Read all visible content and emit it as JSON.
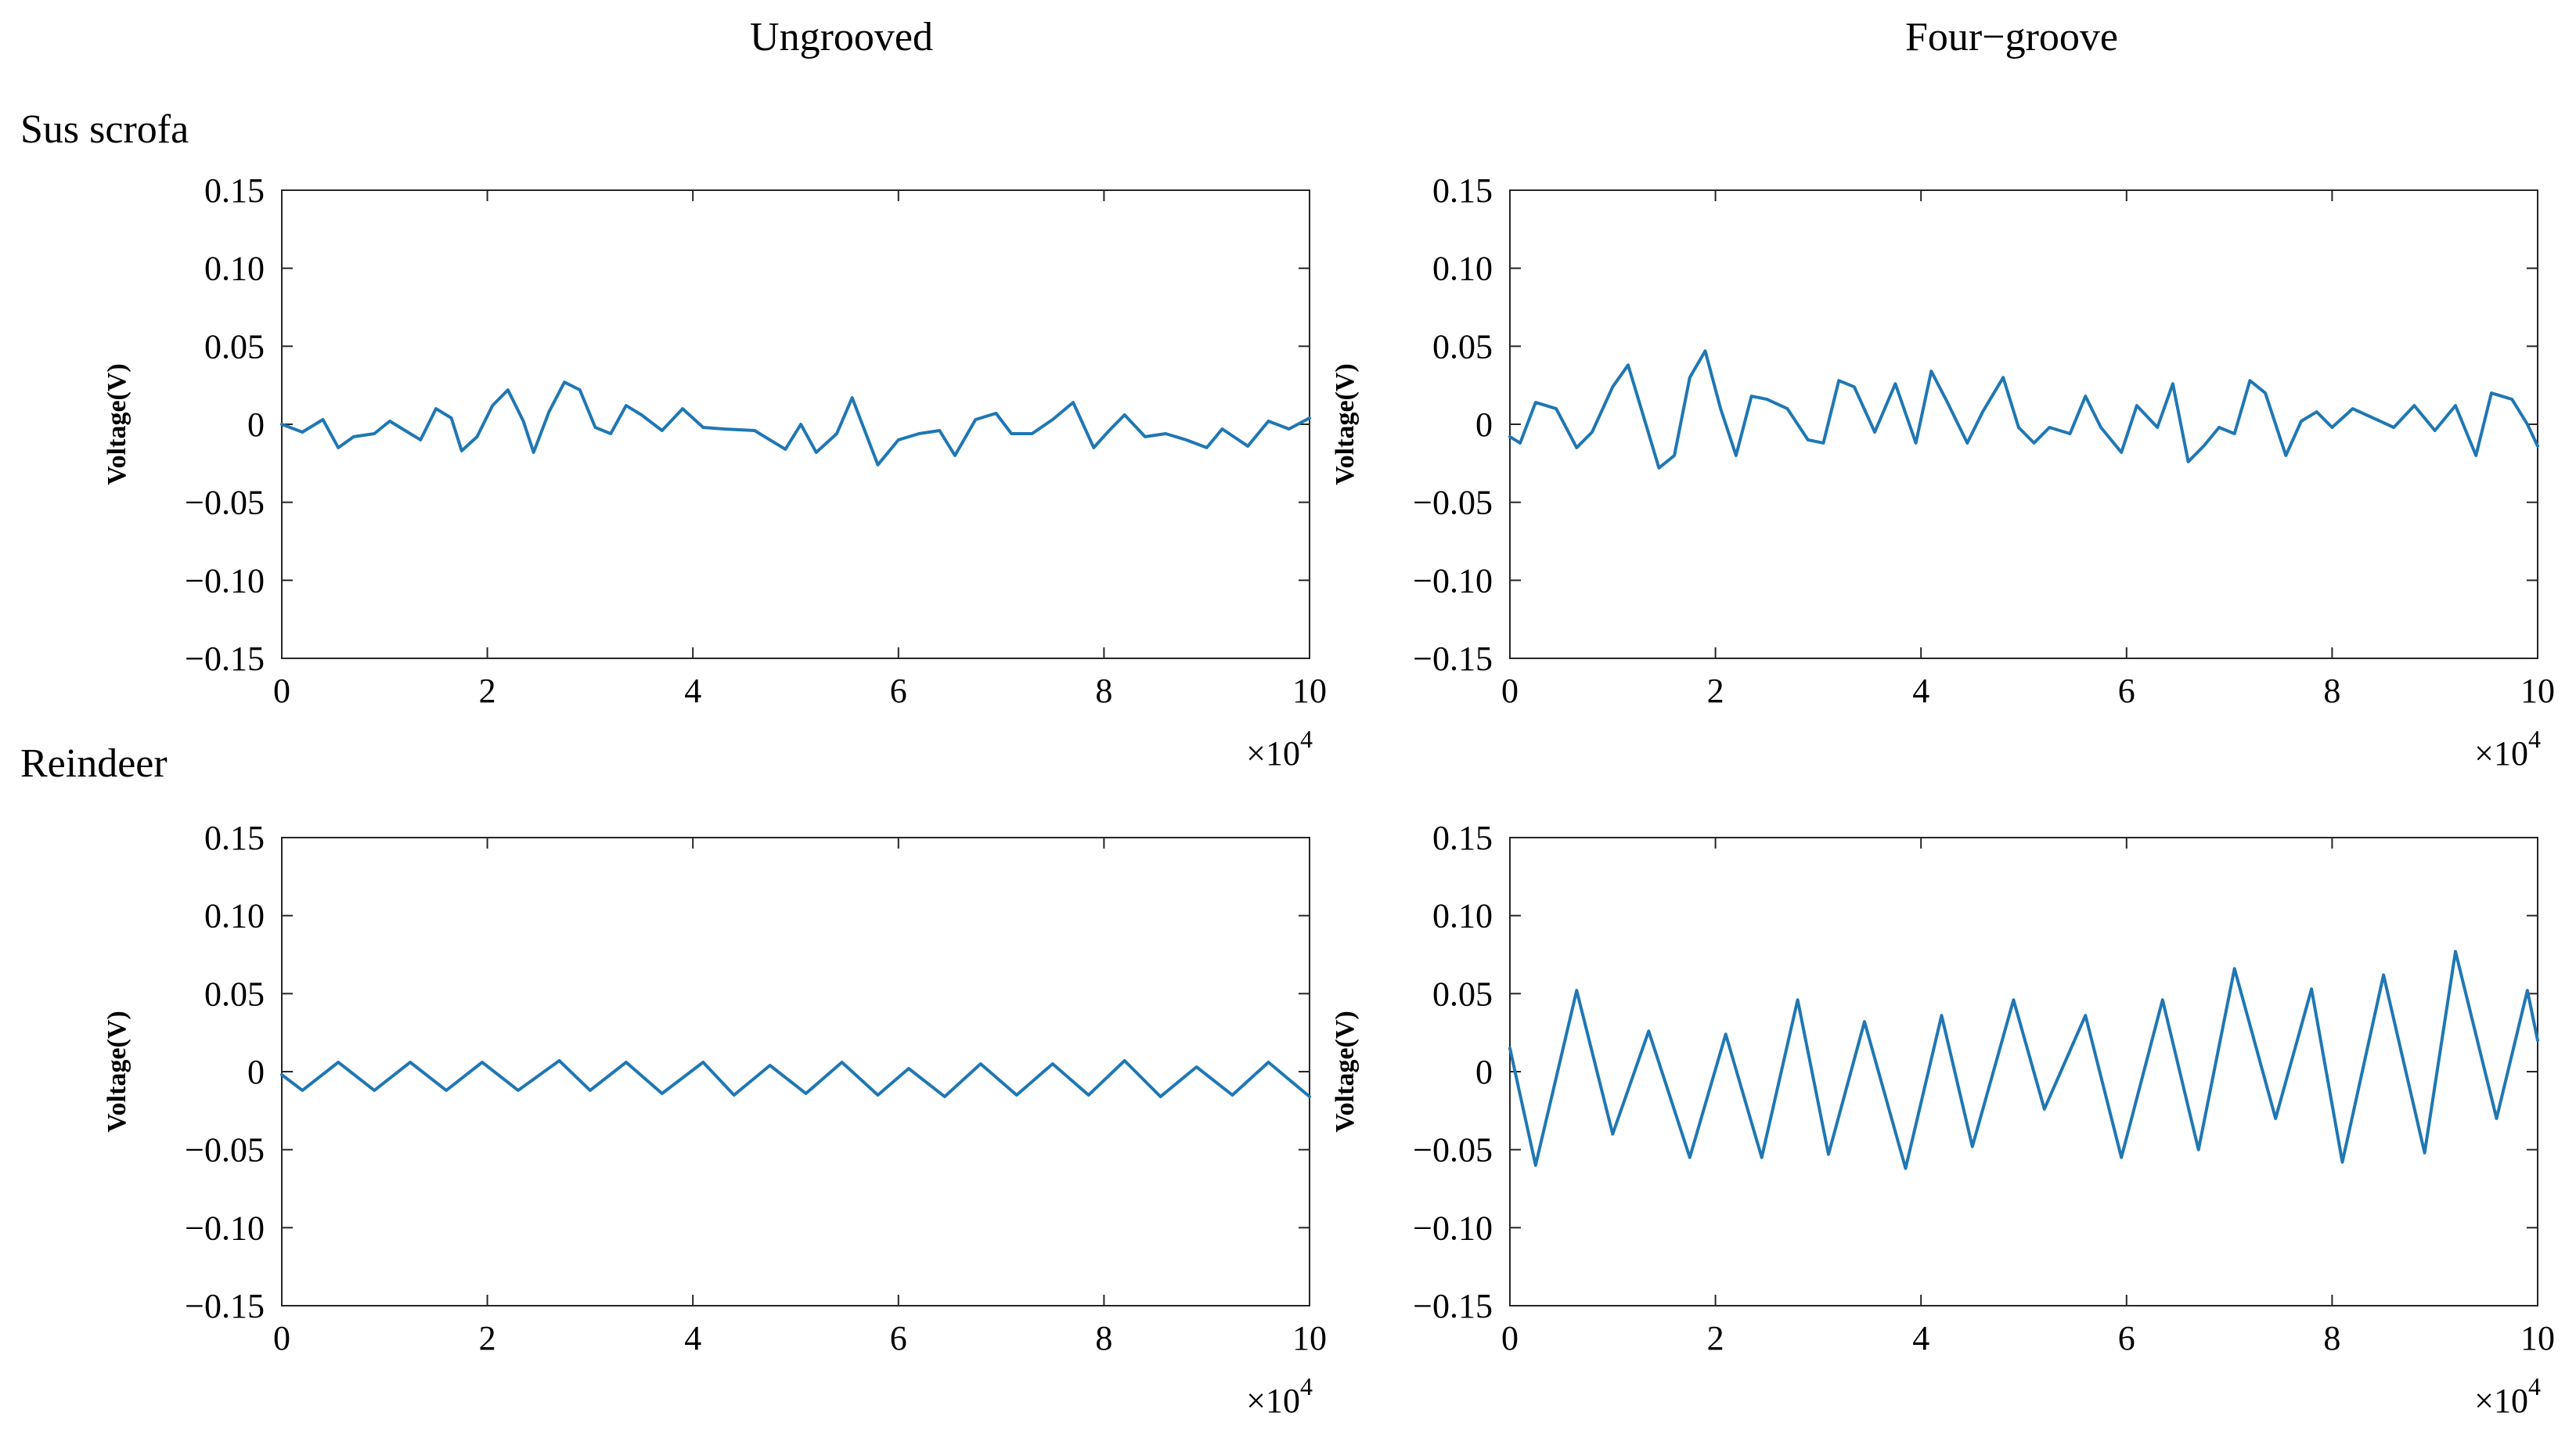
{
  "columns": [
    "Ungrooved",
    "Four−groove"
  ],
  "rows": [
    "Sus scrofa",
    "Reindeer"
  ],
  "colors": {
    "series": "#1f77b4",
    "axis": "#262626"
  },
  "chart_data": [
    {
      "type": "line",
      "panel": "Sus scrofa / Ungrooved",
      "ylabel": "Voltage(V)",
      "xlim": [
        0,
        10
      ],
      "ylim": [
        -0.15,
        0.15
      ],
      "x_multiplier": "×10",
      "x_multiplier_exp": "4",
      "xticks": [
        "0",
        "2",
        "4",
        "6",
        "8",
        "10"
      ],
      "yticks": [
        "0.15",
        "0.10",
        "0.05",
        "0",
        "−0.05",
        "−0.10",
        "−0.15"
      ],
      "series": [
        {
          "x": [
            0,
            0.2,
            0.4,
            0.55,
            0.7,
            0.9,
            1.05,
            1.2,
            1.35,
            1.5,
            1.65,
            1.75,
            1.9,
            2.05,
            2.2,
            2.35,
            2.45,
            2.6,
            2.75,
            2.9,
            3.05,
            3.2,
            3.35,
            3.5,
            3.7,
            3.9,
            4.1,
            4.3,
            4.6,
            4.9,
            5.05,
            5.2,
            5.4,
            5.55,
            5.8,
            6.0,
            6.2,
            6.4,
            6.55,
            6.75,
            6.95,
            7.1,
            7.3,
            7.5,
            7.7,
            7.9,
            8.05,
            8.2,
            8.4,
            8.6,
            8.8,
            9.0,
            9.15,
            9.4,
            9.6,
            9.8,
            10
          ],
          "y": [
            0,
            -0.005,
            0.003,
            -0.015,
            -0.008,
            -0.006,
            0.002,
            -0.004,
            -0.01,
            0.01,
            0.004,
            -0.017,
            -0.008,
            0.012,
            0.022,
            0.002,
            -0.018,
            0.008,
            0.027,
            0.022,
            -0.002,
            -0.006,
            0.012,
            0.006,
            -0.004,
            0.01,
            -0.002,
            -0.003,
            -0.004,
            -0.016,
            0.0,
            -0.018,
            -0.006,
            0.017,
            -0.026,
            -0.01,
            -0.006,
            -0.004,
            -0.02,
            0.003,
            0.007,
            -0.006,
            -0.006,
            0.003,
            0.014,
            -0.015,
            -0.004,
            0.006,
            -0.008,
            -0.006,
            -0.01,
            -0.015,
            -0.003,
            -0.014,
            0.002,
            -0.003,
            0.004
          ]
        }
      ]
    },
    {
      "type": "line",
      "panel": "Sus scrofa / Four-groove",
      "ylabel": "Voltage(V)",
      "xlim": [
        0,
        10
      ],
      "ylim": [
        -0.15,
        0.15
      ],
      "x_multiplier": "×10",
      "x_multiplier_exp": "4",
      "xticks": [
        "0",
        "2",
        "4",
        "6",
        "8",
        "10"
      ],
      "yticks": [
        "0.15",
        "0.10",
        "0.05",
        "0",
        "−0.05",
        "−0.10",
        "−0.15"
      ],
      "series": [
        {
          "x": [
            0,
            0.1,
            0.25,
            0.45,
            0.65,
            0.8,
            1.0,
            1.15,
            1.3,
            1.45,
            1.6,
            1.75,
            1.9,
            2.05,
            2.2,
            2.35,
            2.5,
            2.7,
            2.9,
            3.05,
            3.2,
            3.35,
            3.55,
            3.75,
            3.95,
            4.1,
            4.25,
            4.45,
            4.6,
            4.8,
            4.95,
            5.1,
            5.25,
            5.45,
            5.6,
            5.75,
            5.95,
            6.1,
            6.3,
            6.45,
            6.6,
            6.75,
            6.9,
            7.05,
            7.2,
            7.35,
            7.55,
            7.7,
            7.85,
            8.0,
            8.2,
            8.4,
            8.6,
            8.8,
            9.0,
            9.2,
            9.4,
            9.55,
            9.75,
            9.9,
            10
          ],
          "y": [
            -0.008,
            -0.012,
            0.014,
            0.01,
            -0.015,
            -0.005,
            0.024,
            0.038,
            0.005,
            -0.028,
            -0.02,
            0.03,
            0.047,
            0.01,
            -0.02,
            0.018,
            0.016,
            0.01,
            -0.01,
            -0.012,
            0.028,
            0.024,
            -0.005,
            0.026,
            -0.012,
            0.034,
            0.015,
            -0.012,
            0.008,
            0.03,
            -0.002,
            -0.012,
            -0.002,
            -0.006,
            0.018,
            -0.002,
            -0.018,
            0.012,
            -0.002,
            0.026,
            -0.024,
            -0.014,
            -0.002,
            -0.006,
            0.028,
            0.02,
            -0.02,
            0.002,
            0.008,
            -0.002,
            0.01,
            0.004,
            -0.002,
            0.012,
            -0.004,
            0.012,
            -0.02,
            0.02,
            0.016,
            0.0,
            -0.014
          ]
        }
      ]
    },
    {
      "type": "line",
      "panel": "Reindeer / Ungrooved",
      "ylabel": "Voltage(V)",
      "xlim": [
        0,
        10
      ],
      "ylim": [
        -0.15,
        0.15
      ],
      "x_multiplier": "×10",
      "x_multiplier_exp": "4",
      "xticks": [
        "0",
        "2",
        "4",
        "6",
        "8",
        "10"
      ],
      "yticks": [
        "0.15",
        "0.10",
        "0.05",
        "0",
        "−0.05",
        "−0.10",
        "−0.15"
      ],
      "series": [
        {
          "x": [
            0,
            0.2,
            0.55,
            0.9,
            1.25,
            1.6,
            1.95,
            2.3,
            2.7,
            3.0,
            3.35,
            3.7,
            4.1,
            4.4,
            4.75,
            5.1,
            5.45,
            5.8,
            6.1,
            6.45,
            6.8,
            7.15,
            7.5,
            7.85,
            8.2,
            8.55,
            8.9,
            9.25,
            9.6,
            10
          ],
          "y": [
            -0.002,
            -0.012,
            0.006,
            -0.012,
            0.006,
            -0.012,
            0.006,
            -0.012,
            0.007,
            -0.012,
            0.006,
            -0.014,
            0.006,
            -0.015,
            0.004,
            -0.014,
            0.006,
            -0.015,
            0.002,
            -0.016,
            0.005,
            -0.015,
            0.005,
            -0.015,
            0.007,
            -0.016,
            0.003,
            -0.015,
            0.006,
            -0.016
          ]
        }
      ]
    },
    {
      "type": "line",
      "panel": "Reindeer / Four-groove",
      "ylabel": "Voltage(V)",
      "xlim": [
        0,
        10
      ],
      "ylim": [
        -0.15,
        0.15
      ],
      "x_multiplier": "×10",
      "x_multiplier_exp": "4",
      "xticks": [
        "0",
        "2",
        "4",
        "6",
        "8",
        "10"
      ],
      "yticks": [
        "0.15",
        "0.10",
        "0.05",
        "0",
        "−0.05",
        "−0.10",
        "−0.15"
      ],
      "series": [
        {
          "x": [
            0,
            0.25,
            0.65,
            1.0,
            1.35,
            1.75,
            2.1,
            2.45,
            2.8,
            3.1,
            3.45,
            3.85,
            4.2,
            4.5,
            4.9,
            5.2,
            5.6,
            5.95,
            6.35,
            6.7,
            7.05,
            7.45,
            7.8,
            8.1,
            8.5,
            8.9,
            9.2,
            9.6,
            9.9,
            10
          ],
          "y": [
            0.015,
            -0.06,
            0.052,
            -0.04,
            0.026,
            -0.055,
            0.024,
            -0.055,
            0.046,
            -0.053,
            0.032,
            -0.062,
            0.036,
            -0.048,
            0.046,
            -0.024,
            0.036,
            -0.055,
            0.046,
            -0.05,
            0.066,
            -0.03,
            0.053,
            -0.058,
            0.062,
            -0.052,
            0.077,
            -0.03,
            0.052,
            0.02
          ]
        }
      ]
    }
  ]
}
